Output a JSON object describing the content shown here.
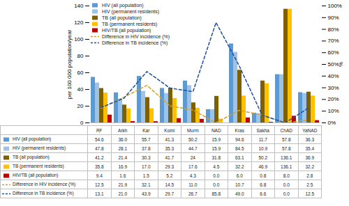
{
  "chart_data": {
    "type": "bar",
    "categories": [
      "RF",
      "Arkh",
      "Kar",
      "Komi",
      "Murm",
      "NAD",
      "Kras",
      "Sakha",
      "ChAD",
      "YaNAD"
    ],
    "ylim": [
      0,
      140
    ],
    "yticks": [
      0,
      20,
      40,
      60,
      80,
      100,
      120,
      140
    ],
    "ylabel": "per 100 000 population/year",
    "y2lim": [
      0,
      100
    ],
    "y2ticks": [
      {
        "value": 0,
        "label": "0%"
      },
      {
        "value": 10,
        "label": "10%"
      },
      {
        "value": 20,
        "label": "20%"
      },
      {
        "value": 30,
        "label": "30%"
      },
      {
        "value": 40,
        "label": "40%"
      },
      {
        "value": 50,
        "label": "50%"
      },
      {
        "value": 60,
        "label": "60%"
      },
      {
        "value": 70,
        "label": "70%"
      },
      {
        "value": 80,
        "label": "80%"
      },
      {
        "value": 90,
        "label": "90%"
      },
      {
        "value": 100,
        "label": "100%"
      }
    ],
    "y2label": "%",
    "grid": false,
    "legend": "top-left",
    "series": [
      {
        "name": "HIV (all population)",
        "color": "#5b9bd5",
        "values": [
          54.6,
          36.0,
          55.7,
          41.3,
          50.2,
          15.9,
          94.6,
          11.7,
          57.8,
          36.3
        ],
        "value_labels": [
          "54.6",
          "36.0",
          "55.7",
          "41.3",
          "50.2",
          "15.9",
          "94.6",
          "11.7",
          "57.8",
          "36.3"
        ]
      },
      {
        "name": "HIV (permanent residents)",
        "color": "#9dc3e6",
        "values": [
          47.8,
          28.1,
          37.8,
          35.3,
          44.7,
          15.9,
          84.5,
          10.9,
          57.8,
          35.4
        ],
        "value_labels": [
          "47.8",
          "28.1",
          "37.8",
          "35.3",
          "44.7",
          "15.9",
          "84.5",
          "10.9",
          "57.8",
          "35.4"
        ]
      },
      {
        "name": "TB (all population)",
        "color": "#7f6000",
        "values": [
          41.2,
          21.4,
          30.3,
          41.7,
          24,
          31.8,
          63.1,
          50.2,
          136.1,
          36.9
        ],
        "value_labels": [
          "41.2",
          "21.4",
          "30.3",
          "41.7",
          "24",
          "31.8",
          "63.1",
          "50.2",
          "136.1",
          "36.9"
        ]
      },
      {
        "name": "TB (permanent residents)",
        "color": "#ffc000",
        "values": [
          35.8,
          16.9,
          17.0,
          29.3,
          17.6,
          4.5,
          32.2,
          46.9,
          136.1,
          32.2
        ],
        "value_labels": [
          "35.8",
          "16.9",
          "17.0",
          "29.3",
          "17.6",
          "4.5",
          "32.2",
          "46.9",
          "136.1",
          "32.2"
        ]
      },
      {
        "name": "HIV/TB (all population)",
        "color": "#c00000",
        "values": [
          9.4,
          1.6,
          1.5,
          5.2,
          4.3,
          0.0,
          6.0,
          0.8,
          8.0,
          2.8
        ],
        "value_labels": [
          "9.4",
          "1.6",
          "1.5",
          "5.2",
          "4.3",
          "0.0",
          "6.0",
          "0.8",
          "8.0",
          "2.8"
        ]
      },
      {
        "name": "Difference in HIV incidence (%)",
        "type": "line",
        "axis": "y2",
        "line_style": "dashed",
        "color": "#d4a02a",
        "values": [
          12.5,
          21.9,
          32.1,
          14.5,
          11.0,
          0.0,
          10.7,
          6.8,
          0.0,
          2.5
        ],
        "value_labels": [
          "12.5",
          "21.9",
          "32.1",
          "14.5",
          "11.0",
          "0.0",
          "10.7",
          "6.8",
          "0.0",
          "2.5"
        ]
      },
      {
        "name": "Difference in TB incidence (%)",
        "type": "line",
        "axis": "y2",
        "line_style": "dashed",
        "color": "#1f4e9c",
        "values": [
          13.1,
          21.0,
          43.9,
          29.7,
          26.7,
          85.8,
          49.0,
          6.6,
          0.0,
          12.5
        ],
        "value_labels": [
          "13.1",
          "21.0",
          "43.9",
          "29.7",
          "26.7",
          "85.8",
          "49.0",
          "6.6",
          "0.0",
          "12.5"
        ]
      }
    ]
  }
}
